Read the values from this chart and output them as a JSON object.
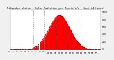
{
  "title": "Milwaukee Weather  Solar Radiation per Minute W/m² (Last 24 Hours)",
  "bg_color": "#f0f0f0",
  "plot_bg_color": "#ffffff",
  "fill_color": "#ff0000",
  "line_color": "#bb0000",
  "grid_color": "#888888",
  "y_ticks": [
    0,
    200,
    400,
    600,
    800,
    1000
  ],
  "y_max": 1050,
  "peak": 900,
  "peak_hour": 13.0,
  "rise_hour": 5.8,
  "set_hour": 20.2,
  "white_lines": [
    7.1,
    7.6
  ],
  "vgrid_lines": [
    6,
    9,
    12,
    15,
    18
  ],
  "sigma": 2.8
}
